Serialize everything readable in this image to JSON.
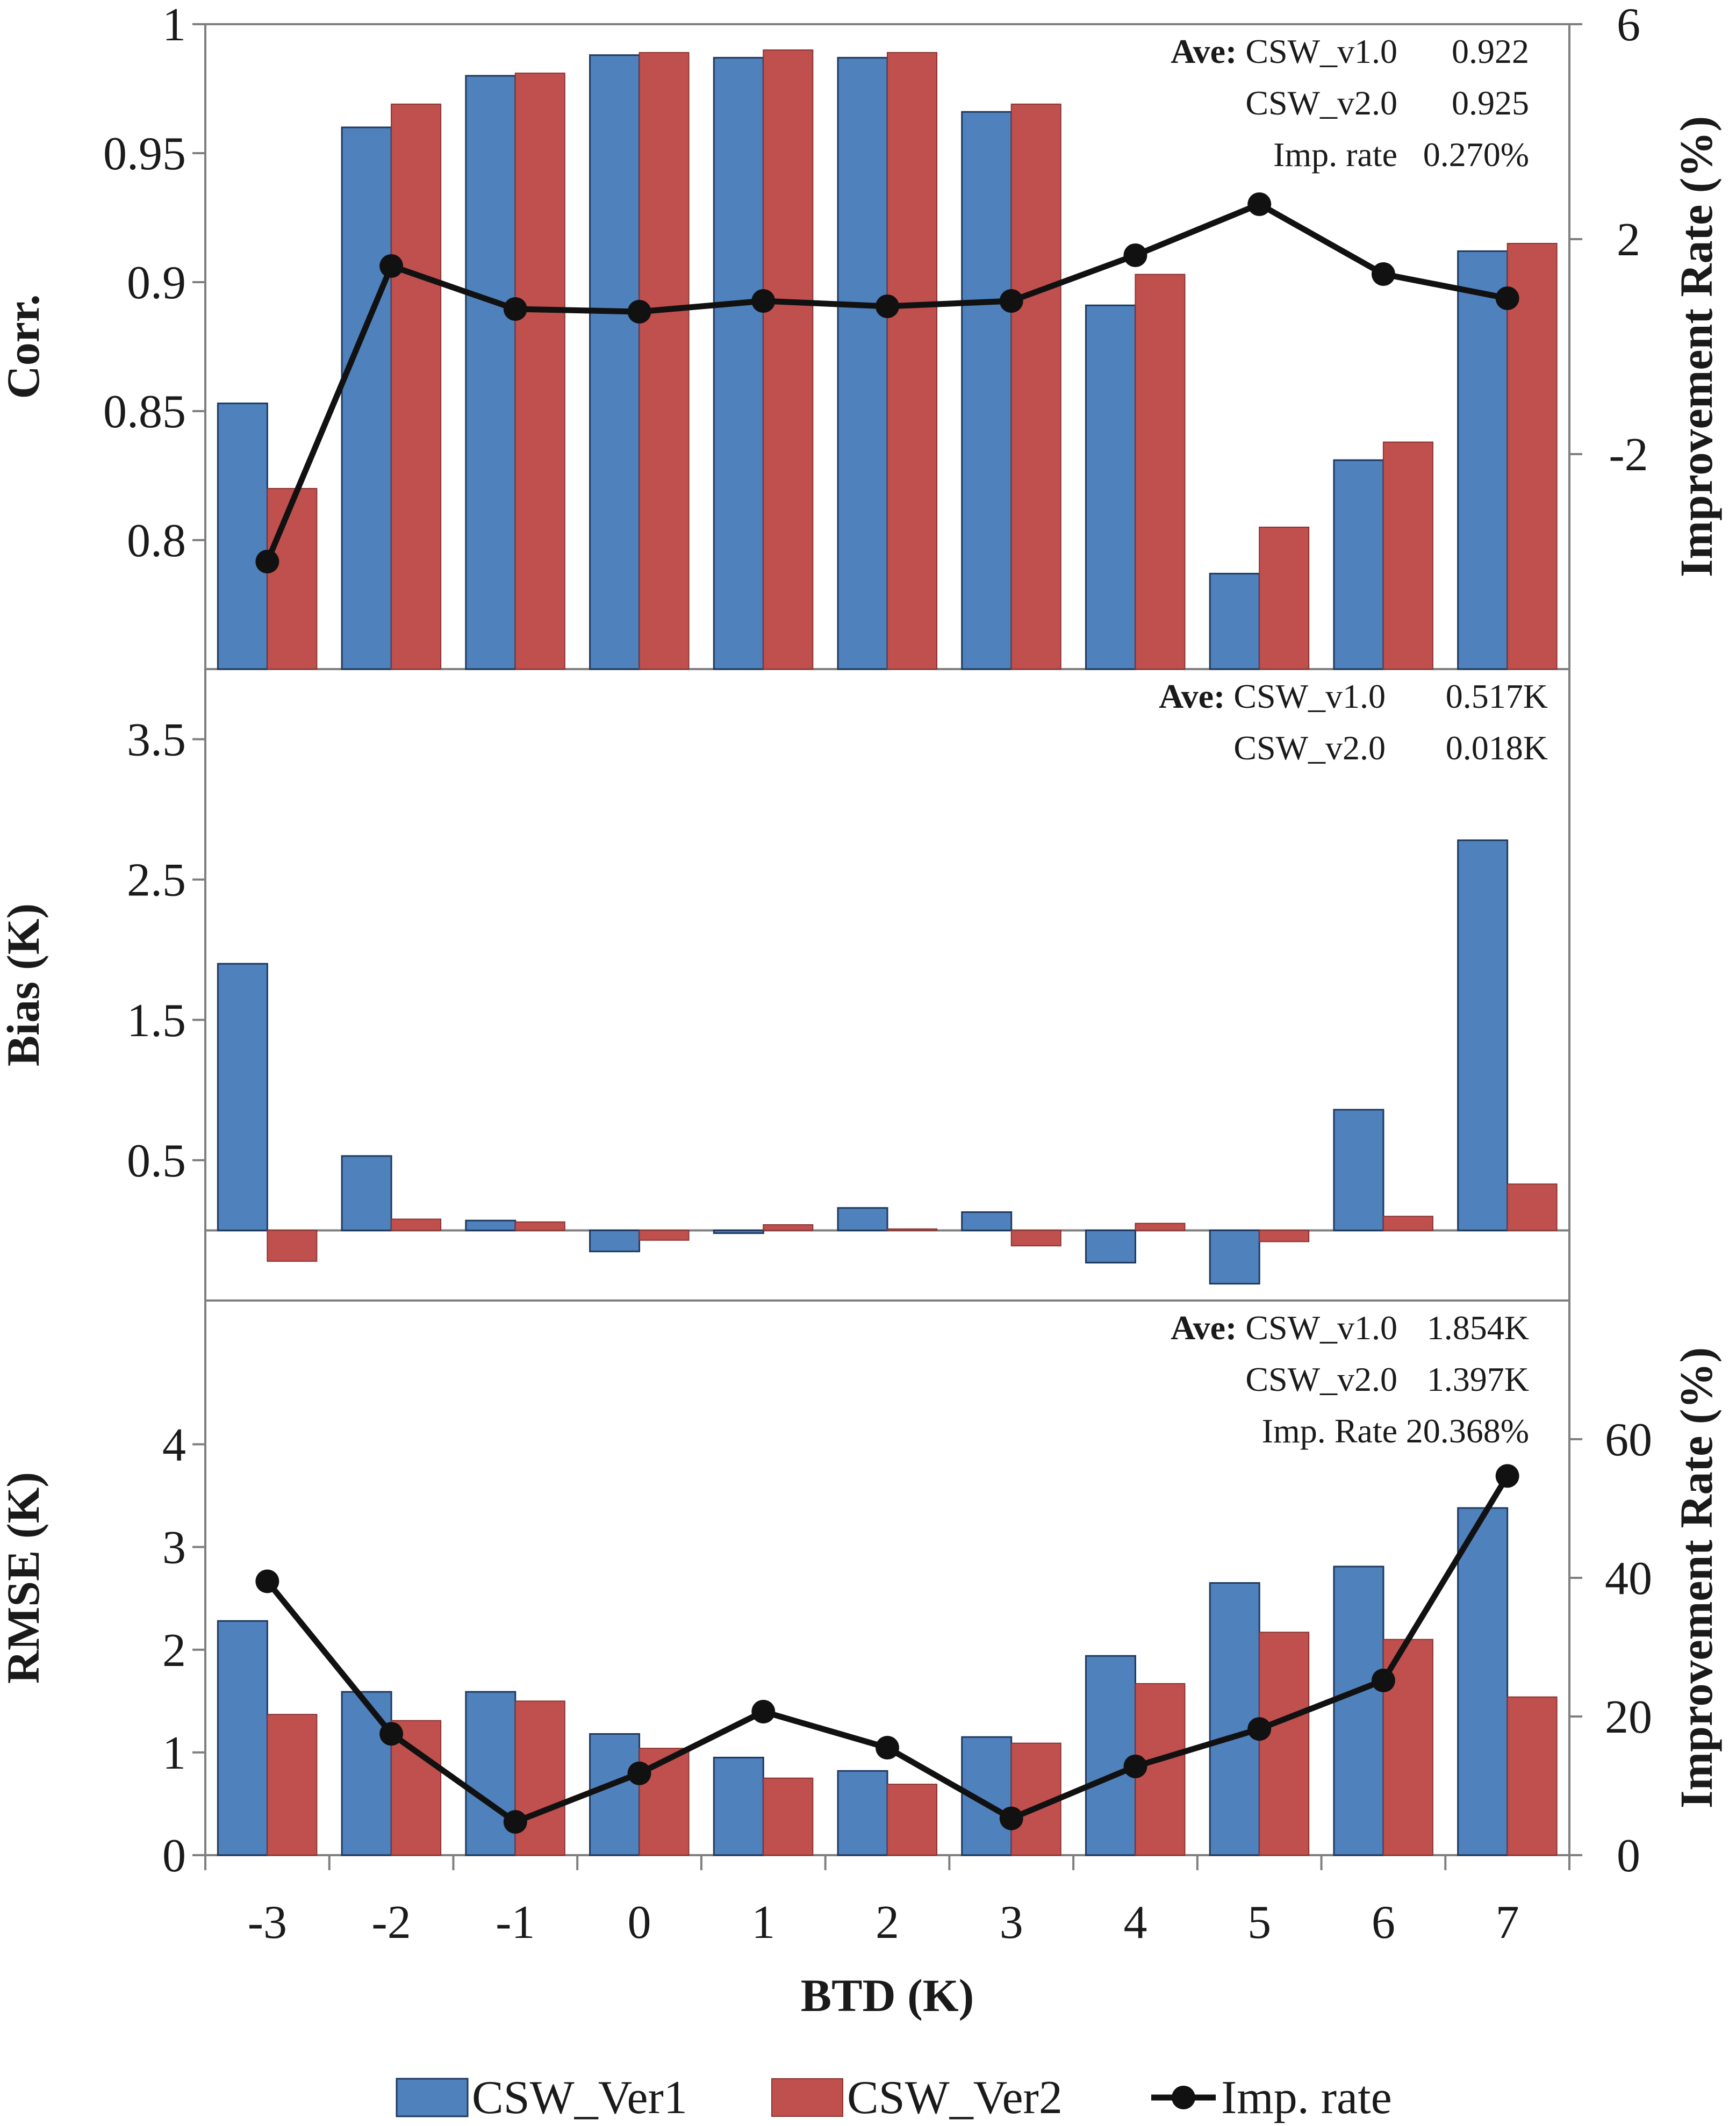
{
  "chart_data": [
    {
      "id": "corr",
      "type": "bar+line",
      "ylabel": "Corr.",
      "y2label": "Improvement Rate (%)",
      "ylim": [
        0.75,
        1.0
      ],
      "yticks": [
        0.8,
        0.85,
        0.9,
        0.95,
        1
      ],
      "ytick_labels": [
        "0.8",
        "0.85",
        "0.9",
        "0.95",
        "1"
      ],
      "y2lim": [
        -6,
        6
      ],
      "y2ticks": [
        -2,
        2,
        6
      ],
      "y2tick_labels": [
        "-2",
        "2",
        "6"
      ],
      "categories": [
        "-3",
        "-2",
        "-1",
        "0",
        "1",
        "2",
        "3",
        "4",
        "5",
        "6",
        "7"
      ],
      "series": [
        {
          "name": "CSW_Ver1",
          "values": [
            0.853,
            0.96,
            0.98,
            0.988,
            0.987,
            0.987,
            0.966,
            0.891,
            0.787,
            0.831,
            0.912
          ]
        },
        {
          "name": "CSW_Ver2",
          "values": [
            0.82,
            0.969,
            0.981,
            0.989,
            0.99,
            0.989,
            0.969,
            0.903,
            0.805,
            0.838,
            0.915
          ]
        }
      ],
      "line": {
        "name": "Imp. rate",
        "values": [
          -4.0,
          1.5,
          0.7,
          0.65,
          0.85,
          0.75,
          0.85,
          1.7,
          2.65,
          1.35,
          0.9
        ]
      },
      "stats": [
        {
          "prefix": "Ave:",
          "label": "CSW_v1.0",
          "value": "0.922"
        },
        {
          "prefix": "",
          "label": "CSW_v2.0",
          "value": "0.925"
        },
        {
          "prefix": "",
          "label": "Imp. rate",
          "value": "0.270%"
        }
      ]
    },
    {
      "id": "bias",
      "type": "bar",
      "ylabel": "Bias (K)",
      "ylim": [
        -0.5,
        4.0
      ],
      "yticks": [
        0.5,
        1.5,
        2.5,
        3.5
      ],
      "ytick_labels": [
        "0.5",
        "1.5",
        "2.5",
        "3.5"
      ],
      "categories": [
        "-3",
        "-2",
        "-1",
        "0",
        "1",
        "2",
        "3",
        "4",
        "5",
        "6",
        "7"
      ],
      "series": [
        {
          "name": "CSW_Ver1",
          "values": [
            1.9,
            0.53,
            0.07,
            -0.15,
            -0.02,
            0.16,
            0.13,
            -0.23,
            -0.38,
            0.86,
            2.78
          ]
        },
        {
          "name": "CSW_Ver2",
          "values": [
            -0.22,
            0.08,
            0.06,
            -0.07,
            0.04,
            0.01,
            -0.11,
            0.05,
            -0.08,
            0.1,
            0.33
          ]
        }
      ],
      "stats": [
        {
          "prefix": "Ave:",
          "label": "CSW_v1.0",
          "value": "0.517K"
        },
        {
          "prefix": "",
          "label": "CSW_v2.0",
          "value": "0.018K"
        }
      ]
    },
    {
      "id": "rmse",
      "type": "bar+line",
      "ylabel": "RMSE (K)",
      "y2label": "Improvement Rate (%)",
      "ylim": [
        0,
        5.4
      ],
      "yticks": [
        0,
        1,
        2,
        3,
        4
      ],
      "ytick_labels": [
        "0",
        "1",
        "2",
        "3",
        "4"
      ],
      "y2lim": [
        0,
        80
      ],
      "y2ticks": [
        0,
        20,
        40,
        60
      ],
      "y2tick_labels": [
        "0",
        "20",
        "40",
        "60"
      ],
      "xlabel": "BTD (K)",
      "categories": [
        "-3",
        "-2",
        "-1",
        "0",
        "1",
        "2",
        "3",
        "4",
        "5",
        "6",
        "7"
      ],
      "series": [
        {
          "name": "CSW_Ver1",
          "values": [
            2.28,
            1.59,
            1.59,
            1.18,
            0.95,
            0.82,
            1.15,
            1.94,
            2.65,
            2.81,
            3.38
          ]
        },
        {
          "name": "CSW_Ver2",
          "values": [
            1.37,
            1.31,
            1.5,
            1.04,
            0.75,
            0.69,
            1.09,
            1.67,
            2.17,
            2.1,
            1.54
          ]
        }
      ],
      "line": {
        "name": "Imp. rate",
        "values": [
          39.5,
          17.5,
          4.8,
          11.8,
          20.7,
          15.5,
          5.3,
          12.8,
          18.2,
          25.2,
          54.7
        ]
      },
      "stats": [
        {
          "prefix": "Ave:",
          "label": "CSW_v1.0",
          "value": "1.854K"
        },
        {
          "prefix": "",
          "label": "CSW_v2.0",
          "value": "1.397K"
        },
        {
          "prefix": "",
          "label": "Imp. Rate",
          "value": "20.368%"
        }
      ]
    }
  ],
  "legend": {
    "ver1": "CSW_Ver1",
    "ver2": "CSW_Ver2",
    "imp": "Imp. rate"
  },
  "colors": {
    "ver1": "#4f81bd",
    "ver2": "#c0504d",
    "line": "#111111"
  }
}
